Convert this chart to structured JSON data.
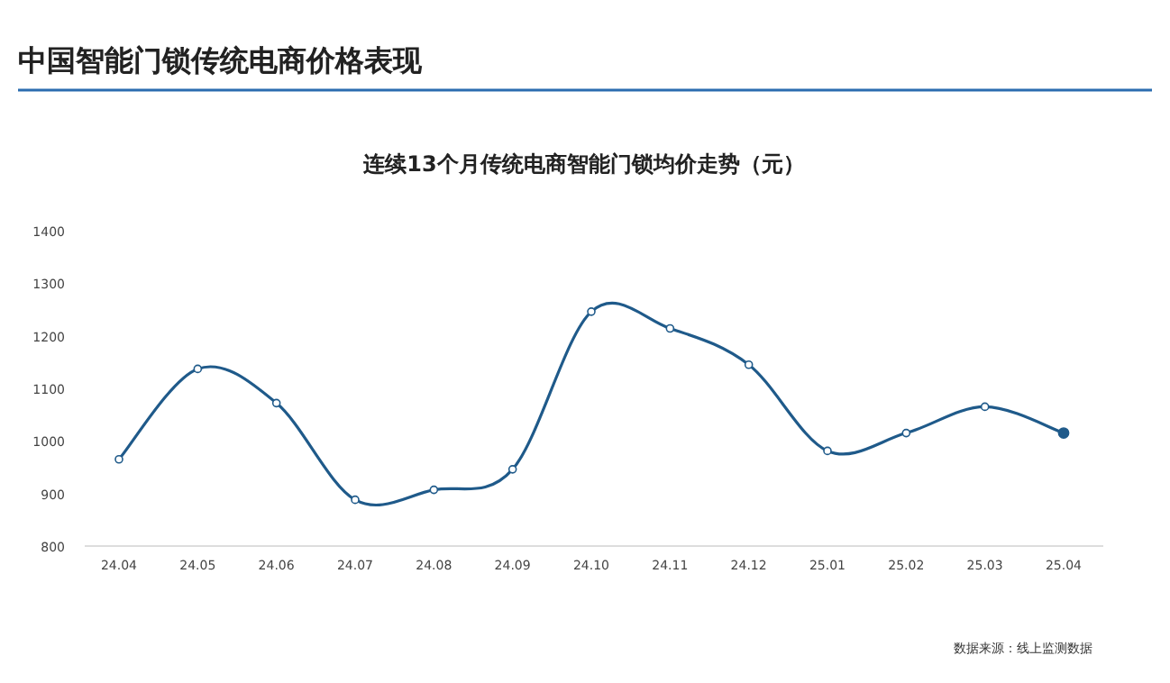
{
  "chart_data": {
    "type": "line",
    "title": "中国智能门锁传统电商价格表现",
    "subtitle": "连续13个月传统电商智能门锁均价走势（元）",
    "categories": [
      "24.04",
      "24.05",
      "24.06",
      "24.07",
      "24.08",
      "24.09",
      "24.10",
      "24.11",
      "24.12",
      "25.01",
      "25.02",
      "25.03",
      "25.04"
    ],
    "series": [
      {
        "color": "#1f5a8a",
        "values": [
          965,
          1137,
          1072,
          888,
          907,
          946,
          1246,
          1214,
          1145,
          981,
          1015,
          1065,
          1015
        ]
      }
    ],
    "ylim": [
      800,
      1400
    ],
    "yticks": [
      800,
      900,
      1000,
      1100,
      1200,
      1300,
      1400
    ],
    "marker": "circle",
    "grid": false,
    "annotations": [
      "数据来源：线上监测数据"
    ]
  }
}
